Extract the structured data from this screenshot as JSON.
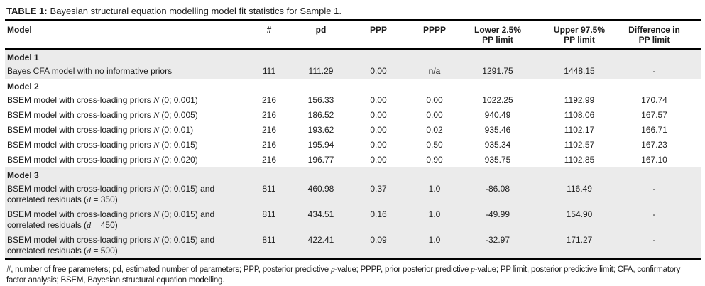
{
  "colors": {
    "shaded_row_bg": "#ebebeb",
    "rule_color": "#000000",
    "text_color": "#1d1d1d"
  },
  "caption": {
    "label": "TABLE 1:",
    "text": "Bayesian structural equation modelling model fit statistics for Sample 1."
  },
  "table": {
    "columns": [
      {
        "id": "model",
        "lines": [
          "Model"
        ]
      },
      {
        "id": "num-free-params",
        "lines": [
          "#"
        ]
      },
      {
        "id": "pd",
        "lines": [
          "pd"
        ]
      },
      {
        "id": "ppp",
        "lines": [
          "PPP"
        ]
      },
      {
        "id": "pppp",
        "lines": [
          "PPPP"
        ]
      },
      {
        "id": "lower-pp-limit",
        "lines": [
          "Lower 2.5%",
          "PP limit"
        ]
      },
      {
        "id": "upper-pp-limit",
        "lines": [
          "Upper 97.5%",
          "PP limit"
        ]
      },
      {
        "id": "difference-pp-limit",
        "lines": [
          "Difference in",
          "PP limit"
        ]
      }
    ],
    "sections": [
      {
        "label": "Model 1",
        "shaded": true,
        "rows": [
          {
            "model": [
              {
                "t": "Bayes CFA model with no informative priors"
              }
            ],
            "values": [
              "111",
              "111.29",
              "0.00",
              "n/a",
              "1291.75",
              "1448.15",
              "-"
            ]
          }
        ]
      },
      {
        "label": "Model 2",
        "shaded": false,
        "rows": [
          {
            "model": [
              {
                "t": "BSEM model with cross-loading priors "
              },
              {
                "t": "N",
                "i": true
              },
              {
                "t": " (0; 0.001)"
              }
            ],
            "values": [
              "216",
              "156.33",
              "0.00",
              "0.00",
              "1022.25",
              "1192.99",
              "170.74"
            ]
          },
          {
            "model": [
              {
                "t": "BSEM model with cross-loading priors "
              },
              {
                "t": "N",
                "i": true
              },
              {
                "t": " (0; 0.005)"
              }
            ],
            "values": [
              "216",
              "186.52",
              "0.00",
              "0.00",
              "940.49",
              "1108.06",
              "167.57"
            ]
          },
          {
            "model": [
              {
                "t": "BSEM model with cross-loading priors "
              },
              {
                "t": "N",
                "i": true
              },
              {
                "t": " (0; 0.01)"
              }
            ],
            "values": [
              "216",
              "193.62",
              "0.00",
              "0.02",
              "935.46",
              "1102.17",
              "166.71"
            ]
          },
          {
            "model": [
              {
                "t": "BSEM model with cross-loading priors "
              },
              {
                "t": "N",
                "i": true
              },
              {
                "t": " (0; 0.015)"
              }
            ],
            "values": [
              "216",
              "195.94",
              "0.00",
              "0.50",
              "935.34",
              "1102.57",
              "167.23"
            ]
          },
          {
            "model": [
              {
                "t": "BSEM model with cross-loading priors "
              },
              {
                "t": "N",
                "i": true
              },
              {
                "t": " (0; 0.020)"
              }
            ],
            "values": [
              "216",
              "196.77",
              "0.00",
              "0.90",
              "935.75",
              "1102.85",
              "167.10"
            ]
          }
        ]
      },
      {
        "label": "Model 3",
        "shaded": true,
        "rows": [
          {
            "model": [
              {
                "t": "BSEM model with cross-loading priors "
              },
              {
                "t": "N",
                "i": true
              },
              {
                "t": " (0; 0.015) and"
              },
              {
                "br": true
              },
              {
                "t": "correlated residuals ("
              },
              {
                "t": "d",
                "i": true
              },
              {
                "t": " = 350)"
              }
            ],
            "values": [
              "811",
              "460.98",
              "0.37",
              "1.0",
              "-86.08",
              "116.49",
              "-"
            ]
          },
          {
            "model": [
              {
                "t": "BSEM model with cross-loading priors "
              },
              {
                "t": "N",
                "i": true
              },
              {
                "t": " (0; 0.015) and"
              },
              {
                "br": true
              },
              {
                "t": "correlated residuals ("
              },
              {
                "t": "d",
                "i": true
              },
              {
                "t": " = 450)"
              }
            ],
            "values": [
              "811",
              "434.51",
              "0.16",
              "1.0",
              "-49.99",
              "154.90",
              "-"
            ]
          },
          {
            "model": [
              {
                "t": "BSEM model with cross-loading priors "
              },
              {
                "t": "N",
                "i": true
              },
              {
                "t": " (0; 0.015) and"
              },
              {
                "br": true
              },
              {
                "t": "correlated residuals ("
              },
              {
                "t": "d",
                "i": true
              },
              {
                "t": " = 500)"
              }
            ],
            "values": [
              "811",
              "422.41",
              "0.09",
              "1.0",
              "-32.97",
              "171.27",
              "-"
            ]
          }
        ]
      }
    ]
  },
  "footnote": {
    "segments": [
      {
        "t": "#, number of free parameters; pd, estimated number of parameters; PPP, posterior predictive "
      },
      {
        "t": "p",
        "i": true
      },
      {
        "t": "-value; PPPP, prior posterior predictive "
      },
      {
        "t": "p",
        "i": true
      },
      {
        "t": "-value; PP limit, posterior predictive limit; CFA, confirmatory"
      },
      {
        "br": true
      },
      {
        "t": "factor analysis; BSEM, Bayesian structural equation modelling."
      }
    ]
  }
}
